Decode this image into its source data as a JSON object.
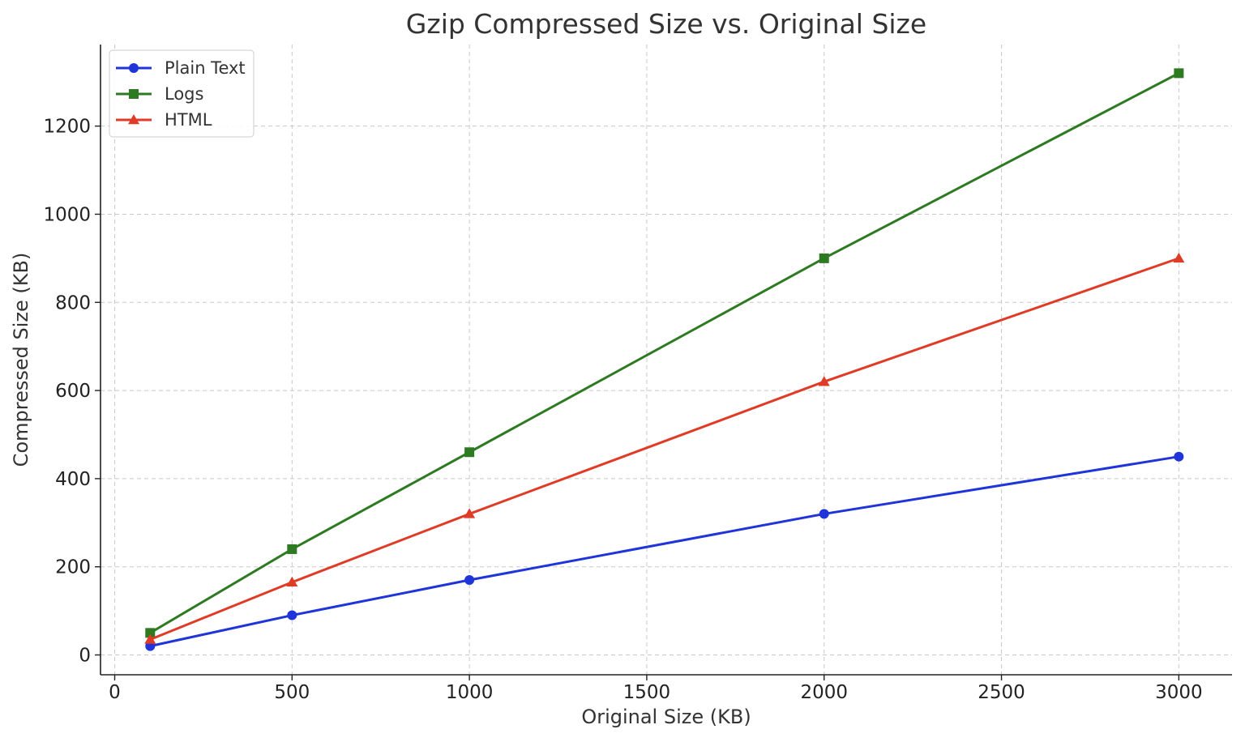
{
  "chart_data": {
    "type": "line",
    "title": "Gzip Compressed Size vs. Original Size",
    "xlabel": "Original Size (KB)",
    "ylabel": "Compressed Size (KB)",
    "xlim": [
      -40,
      3150
    ],
    "ylim": [
      -45,
      1385
    ],
    "xticks": [
      0,
      500,
      1000,
      1500,
      2000,
      2500,
      3000
    ],
    "yticks": [
      0,
      200,
      400,
      600,
      800,
      1000,
      1200
    ],
    "grid": true,
    "legend_position": "top-left",
    "x": [
      100,
      500,
      1000,
      2000,
      3000
    ],
    "series": [
      {
        "name": "Plain Text",
        "values": [
          20,
          90,
          170,
          320,
          450
        ],
        "color": "#1f35d9",
        "marker": "circle"
      },
      {
        "name": "Logs",
        "values": [
          50,
          240,
          460,
          900,
          1320
        ],
        "color": "#2e7a22",
        "marker": "square"
      },
      {
        "name": "HTML",
        "values": [
          35,
          165,
          320,
          620,
          900
        ],
        "color": "#df3b26",
        "marker": "triangle"
      }
    ]
  }
}
